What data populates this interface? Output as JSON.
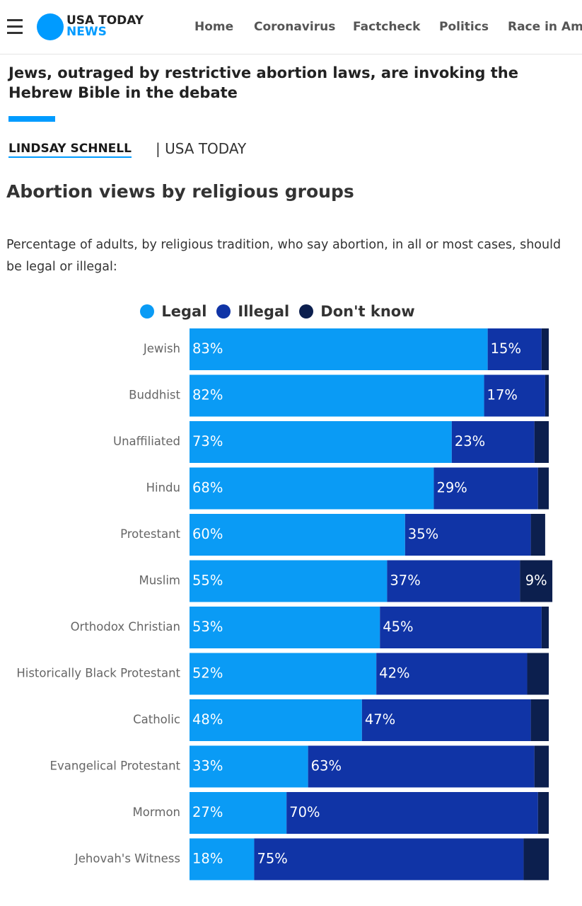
{
  "header": {
    "brand_line1": "USA TODAY",
    "brand_line2": "NEWS",
    "nav": [
      "Home",
      "Coronavirus",
      "Factcheck",
      "Politics",
      "Race in Ame"
    ]
  },
  "article": {
    "headline": "Jews, outraged by restrictive abortion laws, are invoking the Hebrew Bible in the debate",
    "author": "LINDSAY SCHNELL",
    "source": "| USA TODAY"
  },
  "chart_data": {
    "type": "stacked-bar-horizontal",
    "title": "Abortion views by religious groups",
    "subtitle": "Percentage of adults, by religious tradition, who say abortion, in all or most cases, should be legal or illegal:",
    "categories": [
      "Jewish",
      "Buddhist",
      "Unaffiliated",
      "Hindu",
      "Protestant",
      "Muslim",
      "Orthodox Christian",
      "Historically Black Protestant",
      "Catholic",
      "Evangelical Protestant",
      "Mormon",
      "Jehovah's Witness"
    ],
    "xlim": [
      0,
      100
    ],
    "series": [
      {
        "name": "Legal",
        "color": "#0a9bf5",
        "values": [
          83,
          82,
          73,
          68,
          60,
          55,
          53,
          52,
          48,
          33,
          27,
          18
        ],
        "value_labels": [
          "83%",
          "82%",
          "73%",
          "68%",
          "60%",
          "55%",
          "53%",
          "52%",
          "48%",
          "33%",
          "27%",
          "18%"
        ]
      },
      {
        "name": "Illegal",
        "color": "#1034a6",
        "values": [
          15,
          17,
          23,
          29,
          35,
          37,
          45,
          42,
          47,
          63,
          70,
          75
        ],
        "value_labels": [
          "15%",
          "17%",
          "23%",
          "29%",
          "35%",
          "37%",
          "45%",
          "42%",
          "47%",
          "63%",
          "70%",
          "75%"
        ]
      },
      {
        "name": "Don't know",
        "color": "#0c1f4e",
        "values": [
          2,
          1,
          4,
          3,
          4,
          9,
          2,
          6,
          5,
          4,
          3,
          7
        ],
        "value_labels": [
          null,
          null,
          null,
          null,
          null,
          "9%",
          null,
          null,
          null,
          null,
          null,
          null
        ]
      }
    ]
  }
}
